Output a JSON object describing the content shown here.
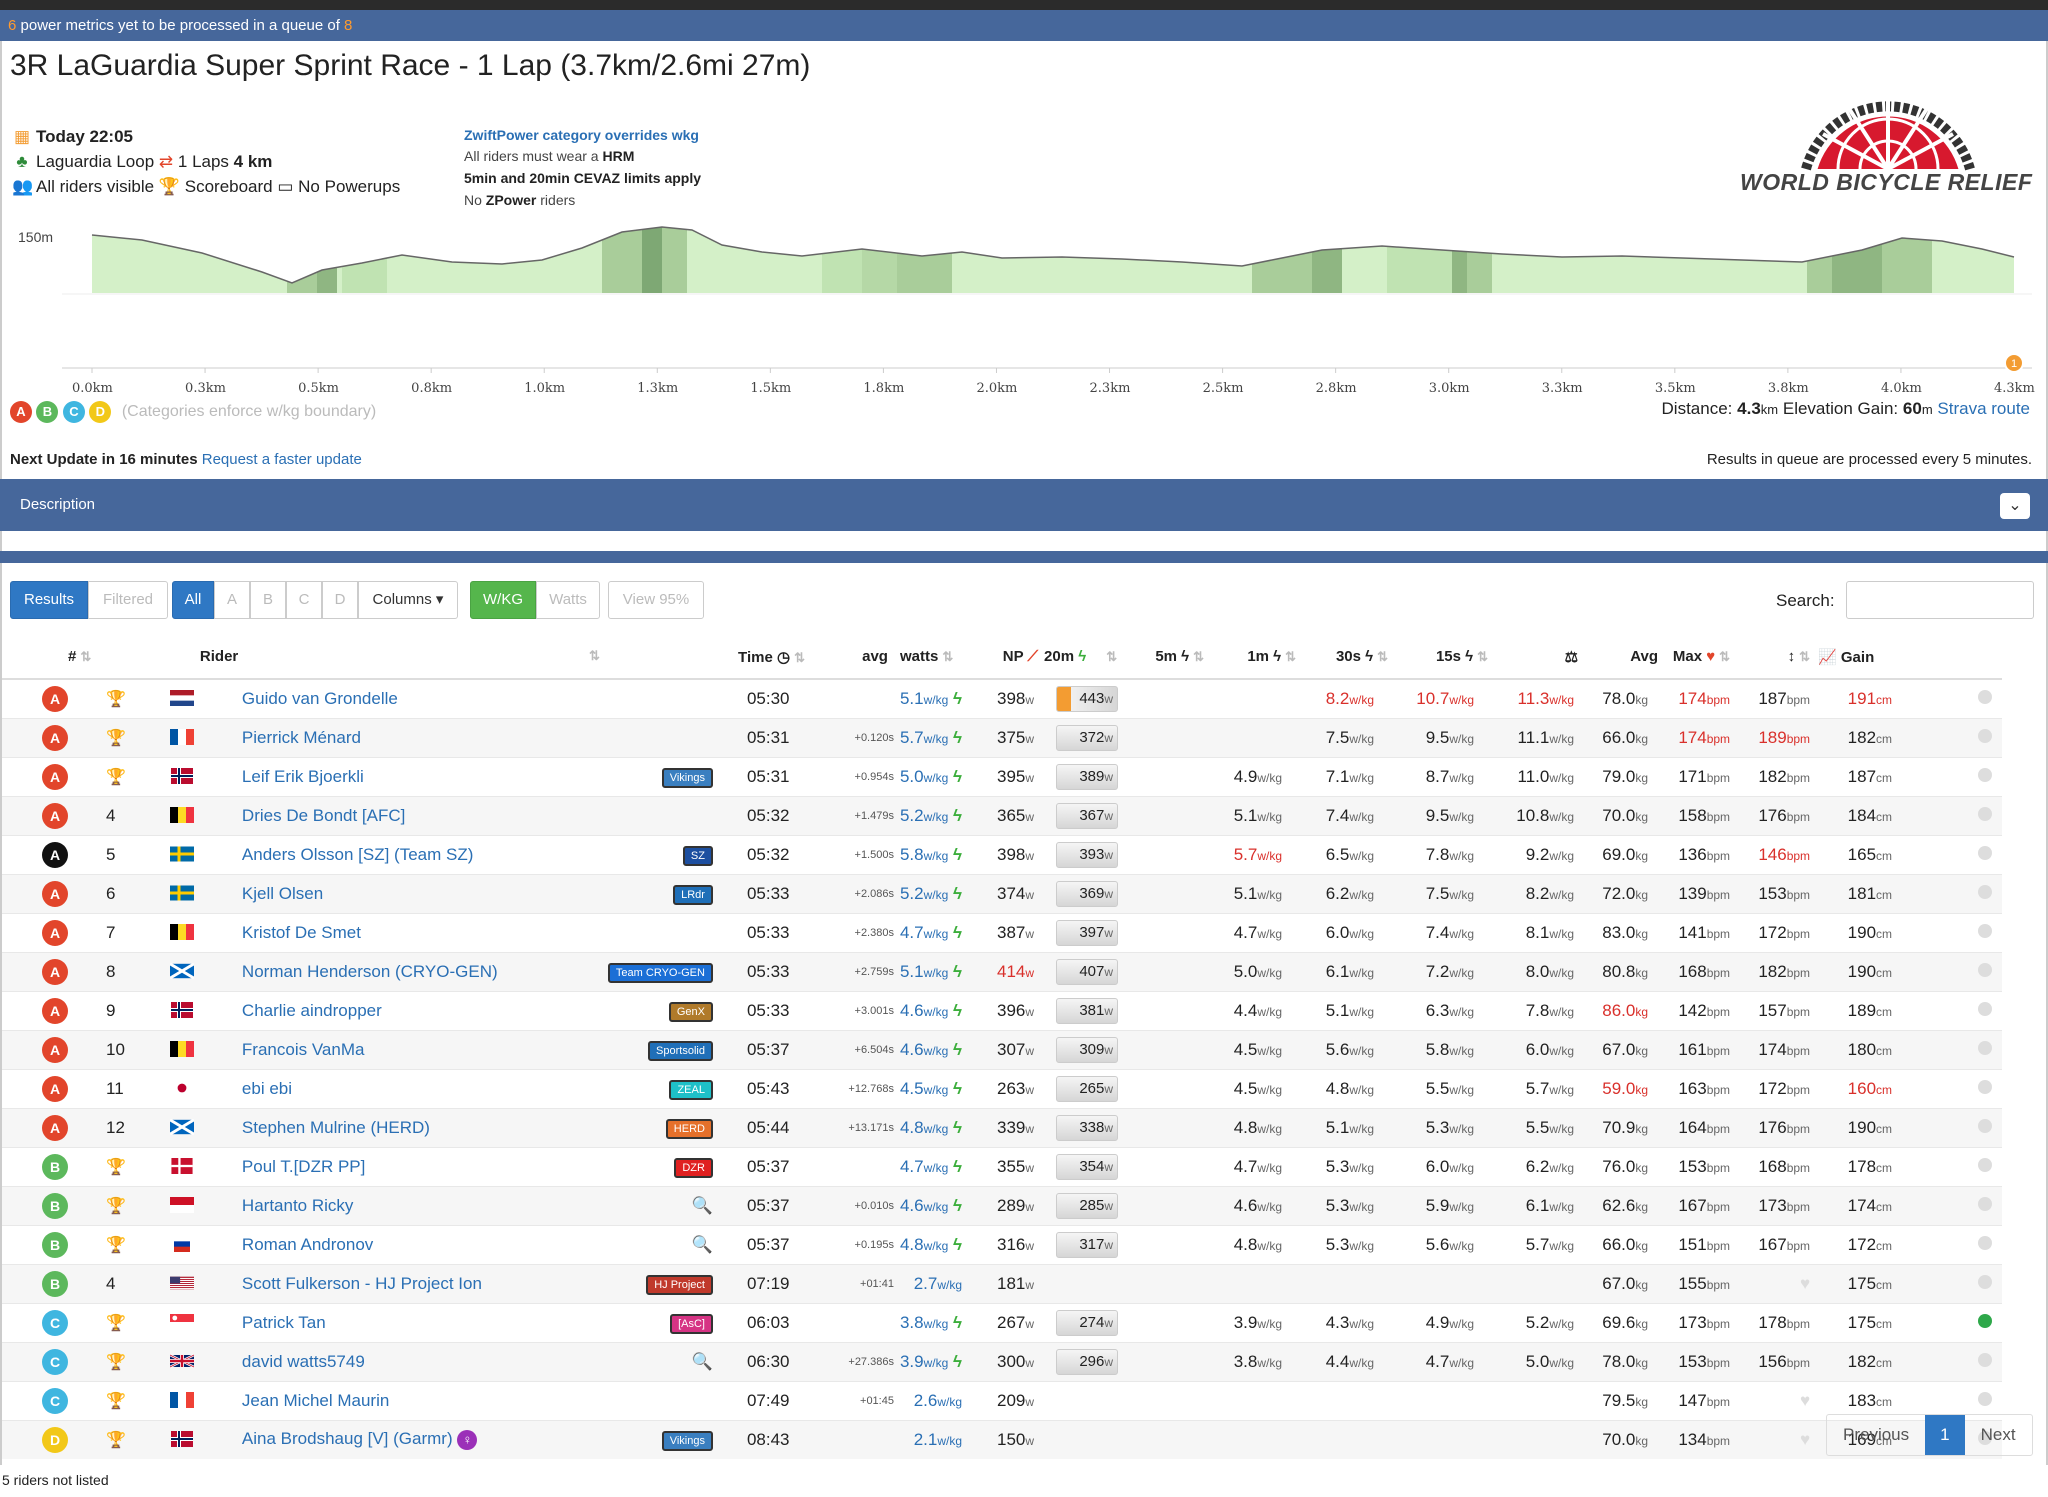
{
  "queue": {
    "count": "6",
    "text": "power metrics yet to be processed in a queue of",
    "total": "8"
  },
  "event": {
    "title": "3R LaGuardia Super Sprint Race - 1 Lap (3.7km/2.6mi 27m)",
    "date": "Today 22:05",
    "route": "Laguardia Loop",
    "laps": "1 Laps",
    "distance_km": "4 km",
    "visibility": "All riders visible",
    "scoreboard": "Scoreboard",
    "powerups": "No Powerups",
    "notes": {
      "category": "ZwiftPower category overrides wkg",
      "hrm_prefix": "All riders must wear a",
      "hrm": "HRM",
      "cevaz": "5min and 20min CEVAZ limits apply",
      "no": "No",
      "zpower": "ZPower",
      "riders": "riders"
    },
    "sponsor": "WORLD BICYCLE RELIEF"
  },
  "profile": {
    "y_label": "150m",
    "x_ticks": [
      "0.0km",
      "0.3km",
      "0.5km",
      "0.8km",
      "1.0km",
      "1.3km",
      "1.5km",
      "1.8km",
      "2.0km",
      "2.3km",
      "2.5km",
      "2.8km",
      "3.0km",
      "3.3km",
      "3.5km",
      "3.8km",
      "4.0km",
      "4.3km"
    ],
    "categories": [
      "A",
      "B",
      "C",
      "D"
    ],
    "categories_note": "(Categories enforce w/kg boundary)",
    "distance_label": "Distance:",
    "distance": "4.3",
    "distance_unit": "km",
    "gain_label": "Elevation Gain:",
    "gain": "60",
    "gain_unit": "m",
    "strava": "Strava route",
    "marker": "1"
  },
  "update": {
    "prefix": "Next Update in",
    "minutes": "16 minutes",
    "link": "Request a faster update",
    "right": "Results in queue are processed every 5 minutes."
  },
  "description": {
    "label": "Description"
  },
  "toolbar": {
    "results": "Results",
    "filtered": "Filtered",
    "all": "All",
    "a": "A",
    "b": "B",
    "c": "C",
    "d": "D",
    "columns": "Columns",
    "wkg": "W/KG",
    "watts": "Watts",
    "view95": "View 95%",
    "search_label": "Search:"
  },
  "columns": {
    "pos": "#",
    "rider": "Rider",
    "time": "Time",
    "avg": "avg",
    "watts": "watts",
    "np": "NP",
    "m20": "20m",
    "m5": "5m",
    "m1": "1m",
    "s30": "30s",
    "s15": "15s",
    "avg_hr": "Avg",
    "max_hr": "Max",
    "gain": "Gain"
  },
  "colors": {
    "A": "#e2452b",
    "B": "#5cb85c",
    "C": "#3fb6e0",
    "D": "#f2c818",
    "black": "#111111",
    "header": "#46679b",
    "link": "#2a6fb4"
  },
  "riders": [
    {
      "cat": "A",
      "pos": "trophy-gold",
      "name": "Guido van Grondelle",
      "flag": "nl",
      "team": "",
      "time": "05:30",
      "gap": "",
      "avg": "5.1",
      "watts": "398",
      "np": "443",
      "np_hi": true,
      "m5": "",
      "m1": "8.2",
      "m1r": true,
      "s30": "10.7",
      "s30r": true,
      "s15": "11.3",
      "s15r": true,
      "weight": "78.0",
      "weightr": false,
      "avghr": "174",
      "avghrr": true,
      "maxhr": "187",
      "maxhrr": false,
      "height": "191",
      "heightr": true
    },
    {
      "cat": "A",
      "pos": "trophy-silver",
      "name": "Pierrick Ménard",
      "flag": "fr",
      "team": "",
      "time": "05:31",
      "gap": "+0.120s",
      "avg": "5.7",
      "watts": "375",
      "np": "372",
      "m5": "",
      "m1": "7.5",
      "s30": "9.5",
      "s15": "11.1",
      "weight": "66.0",
      "avghr": "174",
      "avghrr": true,
      "maxhr": "189",
      "maxhrr": true,
      "height": "182"
    },
    {
      "cat": "A",
      "pos": "trophy-bronze",
      "name": "Leif Erik Bjoerkli",
      "flag": "no",
      "team": "Vikings",
      "teamc": "#3a7fc0",
      "time": "05:31",
      "gap": "+0.954s",
      "avg": "5.0",
      "watts": "395",
      "np": "389",
      "m5": "4.9",
      "m1": "7.1",
      "s30": "8.7",
      "s15": "11.0",
      "weight": "79.0",
      "avghr": "171",
      "maxhr": "182",
      "height": "187"
    },
    {
      "cat": "A",
      "pos": "4",
      "name": "Dries De Bondt [AFC]",
      "flag": "be",
      "team": "",
      "time": "05:32",
      "gap": "+1.479s",
      "avg": "5.2",
      "watts": "365",
      "np": "367",
      "m5": "5.1",
      "m1": "7.4",
      "s30": "9.5",
      "s15": "10.8",
      "weight": "70.0",
      "avghr": "158",
      "maxhr": "176",
      "height": "184"
    },
    {
      "cat": "black",
      "pos": "5",
      "name": "Anders Olsson [SZ] (Team SZ)",
      "flag": "se",
      "team": "SZ",
      "teamc": "#1d4fa0",
      "time": "05:32",
      "gap": "+1.500s",
      "avg": "5.8",
      "watts": "398",
      "np": "393",
      "m5": "5.7",
      "m5r": true,
      "m1": "6.5",
      "s30": "7.8",
      "s15": "9.2",
      "weight": "69.0",
      "avghr": "136",
      "maxhr": "146",
      "maxhrr": true,
      "height": "165"
    },
    {
      "cat": "A",
      "pos": "6",
      "name": "Kjell Olsen",
      "flag": "se",
      "team": "LRdr",
      "teamc": "#1f6fb8",
      "time": "05:33",
      "gap": "+2.086s",
      "avg": "5.2",
      "watts": "374",
      "np": "369",
      "m5": "5.1",
      "m1": "6.2",
      "s30": "7.5",
      "s15": "8.2",
      "weight": "72.0",
      "avghr": "139",
      "maxhr": "153",
      "height": "181"
    },
    {
      "cat": "A",
      "pos": "7",
      "name": "Kristof De Smet",
      "flag": "be",
      "team": "",
      "time": "05:33",
      "gap": "+2.380s",
      "avg": "4.7",
      "watts": "387",
      "np": "397",
      "m5": "4.7",
      "m1": "6.0",
      "s30": "7.4",
      "s15": "8.1",
      "weight": "83.0",
      "avghr": "141",
      "maxhr": "172",
      "height": "190"
    },
    {
      "cat": "A",
      "pos": "8",
      "name": "Norman Henderson (CRYO-GEN)",
      "flag": "sc",
      "team": "Team CRYO-GEN",
      "teamc": "#1b6fd6",
      "time": "05:33",
      "gap": "+2.759s",
      "avg": "5.1",
      "watts": "414",
      "wattsr": true,
      "np": "407",
      "m5": "5.0",
      "m1": "6.1",
      "s30": "7.2",
      "s15": "8.0",
      "weight": "80.8",
      "avghr": "168",
      "maxhr": "182",
      "height": "190"
    },
    {
      "cat": "A",
      "pos": "9",
      "name": "Charlie aindropper",
      "flag": "no",
      "team": "GenX",
      "teamc": "#b07a2a",
      "time": "05:33",
      "gap": "+3.001s",
      "avg": "4.6",
      "watts": "396",
      "np": "381",
      "m5": "4.4",
      "m1": "5.1",
      "s30": "6.3",
      "s15": "7.8",
      "weight": "86.0",
      "weightr": true,
      "avghr": "142",
      "maxhr": "157",
      "height": "189"
    },
    {
      "cat": "A",
      "pos": "10",
      "name": "Francois VanMa",
      "flag": "be",
      "team": "Sportsolid",
      "teamc": "#1f6fb8",
      "time": "05:37",
      "gap": "+6.504s",
      "avg": "4.6",
      "watts": "307",
      "np": "309",
      "m5": "4.5",
      "m1": "5.6",
      "s30": "5.8",
      "s15": "6.0",
      "weight": "67.0",
      "avghr": "161",
      "maxhr": "174",
      "height": "180"
    },
    {
      "cat": "A",
      "pos": "11",
      "name": "ebi ebi",
      "flag": "jp",
      "team": "ZEAL",
      "teamc": "#1ec0c8",
      "time": "05:43",
      "gap": "+12.768s",
      "avg": "4.5",
      "watts": "263",
      "np": "265",
      "m5": "4.5",
      "m1": "4.8",
      "s30": "5.5",
      "s15": "5.7",
      "weight": "59.0",
      "weightr": true,
      "avghr": "163",
      "maxhr": "172",
      "height": "160",
      "heightr": true
    },
    {
      "cat": "A",
      "pos": "12",
      "name": "Stephen Mulrine (HERD)",
      "flag": "sc",
      "team": "HERD",
      "teamc": "#e5702a",
      "time": "05:44",
      "gap": "+13.171s",
      "avg": "4.8",
      "watts": "339",
      "np": "338",
      "m5": "4.8",
      "m1": "5.1",
      "s30": "5.3",
      "s15": "5.5",
      "weight": "70.9",
      "avghr": "164",
      "maxhr": "176",
      "height": "190"
    },
    {
      "cat": "B",
      "pos": "trophy-gold",
      "name": "Poul T.[DZR PP]",
      "flag": "dk",
      "team": "DZR",
      "teamc": "#e02020",
      "time": "05:37",
      "gap": "",
      "avg": "4.7",
      "watts": "355",
      "np": "354",
      "m5": "4.7",
      "m1": "5.3",
      "s30": "6.0",
      "s15": "6.2",
      "weight": "76.0",
      "avghr": "153",
      "maxhr": "168",
      "height": "178"
    },
    {
      "cat": "B",
      "pos": "trophy-silver",
      "name": "Hartanto Ricky",
      "flag": "id",
      "team": "search",
      "time": "05:37",
      "gap": "+0.010s",
      "avg": "4.6",
      "watts": "289",
      "np": "285",
      "m5": "4.6",
      "m1": "5.3",
      "s30": "5.9",
      "s15": "6.1",
      "weight": "62.6",
      "avghr": "167",
      "maxhr": "173",
      "height": "174"
    },
    {
      "cat": "B",
      "pos": "trophy-bronze",
      "name": "Roman Andronov",
      "flag": "ru",
      "team": "search",
      "time": "05:37",
      "gap": "+0.195s",
      "avg": "4.8",
      "watts": "316",
      "np": "317",
      "m5": "4.8",
      "m1": "5.3",
      "s30": "5.6",
      "s15": "5.7",
      "weight": "66.0",
      "avghr": "151",
      "maxhr": "167",
      "height": "172"
    },
    {
      "cat": "B",
      "pos": "4",
      "name": "Scott Fulkerson - HJ Project Ion",
      "flag": "us",
      "team": "HJ Project",
      "teamc": "#c0392b",
      "time": "07:19",
      "gap": "+01:41",
      "avg": "2.7",
      "nobolt": true,
      "watts": "181",
      "np": "",
      "m5": "",
      "m1": "",
      "s30": "",
      "s15": "",
      "weight": "67.0",
      "avghr": "155",
      "maxhr": "",
      "height": "175"
    },
    {
      "cat": "C",
      "pos": "trophy-gold",
      "name": "Patrick Tan",
      "flag": "sg",
      "team": "[AsC]",
      "teamc": "#d63384",
      "time": "06:03",
      "gap": "",
      "avg": "3.8",
      "watts": "267",
      "np": "274",
      "m5": "3.9",
      "m1": "4.3",
      "s30": "4.9",
      "s15": "5.2",
      "weight": "69.6",
      "avghr": "173",
      "maxhr": "178",
      "height": "175",
      "gainicon": true
    },
    {
      "cat": "C",
      "pos": "trophy-silver",
      "name": "david watts5749",
      "flag": "gb",
      "team": "search",
      "time": "06:30",
      "gap": "+27.386s",
      "avg": "3.9",
      "watts": "300",
      "np": "296",
      "m5": "3.8",
      "m1": "4.4",
      "s30": "4.7",
      "s15": "5.0",
      "weight": "78.0",
      "avghr": "153",
      "maxhr": "156",
      "height": "182"
    },
    {
      "cat": "C",
      "pos": "trophy-bronze",
      "name": "Jean Michel Maurin",
      "flag": "fr",
      "team": "",
      "time": "07:49",
      "gap": "+01:45",
      "avg": "2.6",
      "nobolt": true,
      "watts": "209",
      "np": "",
      "m5": "",
      "m1": "",
      "s30": "",
      "s15": "",
      "weight": "79.5",
      "avghr": "147",
      "maxhr": "",
      "height": "183"
    },
    {
      "cat": "D",
      "pos": "trophy-gold",
      "name": "Aina Brodshaug [V] (Garmr)",
      "flag": "no",
      "team": "Vikings",
      "teamc": "#3a7fc0",
      "female": true,
      "time": "08:43",
      "gap": "",
      "avg": "2.1",
      "nobolt": true,
      "watts": "150",
      "np": "",
      "m5": "",
      "m1": "",
      "s30": "",
      "s15": "",
      "weight": "70.0",
      "avghr": "134",
      "maxhr": "",
      "height": "169"
    }
  ],
  "pager": {
    "prev": "Previous",
    "page": "1",
    "next": "Next"
  },
  "not_listed": "5 riders not listed"
}
